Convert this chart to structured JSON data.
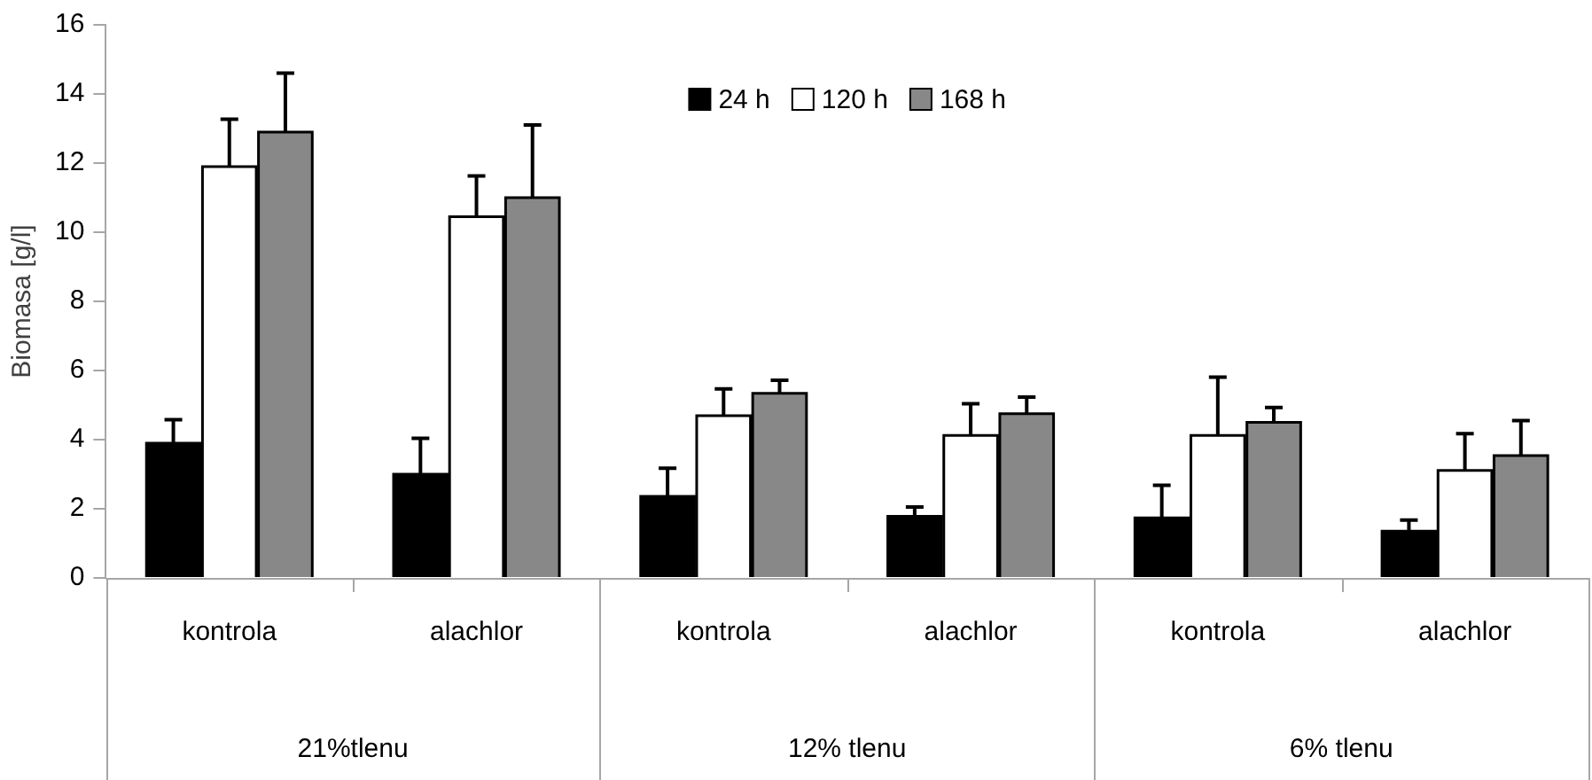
{
  "chart_data": {
    "type": "bar",
    "ylabel": "Biomasa [g/l]",
    "categories": [
      "kontrola",
      "alachlor",
      "kontrola",
      "alachlor",
      "kontrola",
      "alachlor"
    ],
    "series": [
      {
        "name": "24 h",
        "color": "#000000",
        "values": [
          3.9,
          3.0,
          2.36,
          1.78,
          1.74,
          1.35
        ],
        "errors": [
          [
            3.9,
            4.58
          ],
          [
            3.0,
            4.04
          ],
          [
            2.36,
            3.17
          ],
          [
            1.78,
            2.05
          ],
          [
            1.74,
            2.68
          ],
          [
            1.35,
            1.67
          ]
        ]
      },
      {
        "name": "120 h",
        "color": "#ffffff",
        "values": [
          11.9,
          10.45,
          4.69,
          4.12,
          4.12,
          3.11
        ],
        "errors": [
          [
            11.9,
            13.27
          ],
          [
            10.45,
            11.63
          ],
          [
            4.69,
            5.47
          ],
          [
            4.12,
            5.04
          ],
          [
            4.12,
            5.81
          ],
          [
            3.11,
            4.17
          ]
        ]
      },
      {
        "name": "168 h",
        "color": "#888888",
        "values": [
          12.9,
          11.0,
          5.34,
          4.75,
          4.5,
          3.54
        ],
        "errors": [
          [
            12.9,
            14.6
          ],
          [
            11.0,
            13.1
          ],
          [
            5.34,
            5.72
          ],
          [
            4.75,
            5.23
          ],
          [
            4.5,
            4.93
          ],
          [
            3.54,
            4.55
          ]
        ]
      }
    ],
    "annotations": [
      "21%tlenu",
      "12% tlenu",
      "6% tlenu"
    ],
    "ylim": [
      0,
      16
    ],
    "yticks": [
      0,
      2,
      4,
      6,
      8,
      10,
      12,
      14,
      16
    ],
    "grid": false,
    "legend": "top"
  }
}
